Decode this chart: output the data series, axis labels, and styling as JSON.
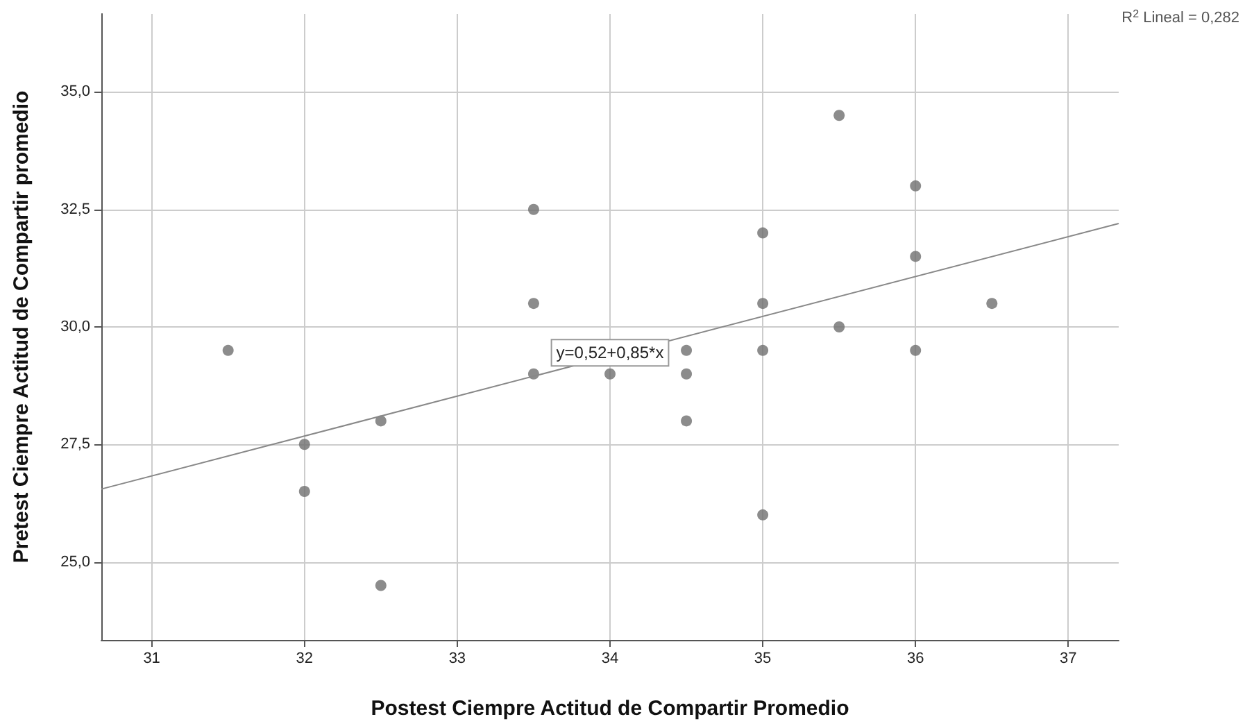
{
  "chart_data": {
    "type": "scatter",
    "xlabel": "Postest Ciempre Actitud de Compartir Promedio",
    "ylabel": "Pretest Ciempre Actitud de Compartir promedio",
    "series": [
      {
        "color": "#6f6f6f",
        "x": [
          31.5,
          32,
          32,
          32.5,
          32.5,
          33.5,
          33.5,
          33.5,
          34,
          34.5,
          34.5,
          34.5,
          35,
          35,
          35,
          35,
          35.5,
          35.5,
          36,
          36,
          36,
          36.5
        ],
        "values": [
          29.5,
          27.5,
          26.5,
          28,
          24.5,
          32.5,
          30.5,
          29,
          29,
          29.5,
          29,
          28,
          32,
          30.5,
          29.5,
          26,
          34.5,
          30,
          33,
          31.5,
          29.5,
          30.5
        ]
      },
      {
        "type": "line",
        "marker": "none",
        "color": "#888888",
        "x": [
          30.67,
          37.33
        ],
        "values": [
          26.55,
          32.2
        ]
      }
    ],
    "xlim": [
      30.67,
      37.33
    ],
    "xticks": [
      31,
      32,
      33,
      34,
      35,
      36,
      37
    ],
    "ylim": [
      23.34,
      36.66
    ],
    "yticks": [
      {
        "value": 25,
        "label": "25,0"
      },
      {
        "value": 27.5,
        "label": "27,5"
      },
      {
        "value": 30,
        "label": "30,0"
      },
      {
        "value": 32.5,
        "label": "32,5"
      },
      {
        "value": 35,
        "label": "35,0"
      }
    ],
    "grid": true,
    "marker": "circle",
    "annotations": [
      {
        "text": "y=0,52+0,85*x",
        "x": 34,
        "y": 29.45
      },
      "R$^{2}$ Lineal = 0,282"
    ]
  }
}
